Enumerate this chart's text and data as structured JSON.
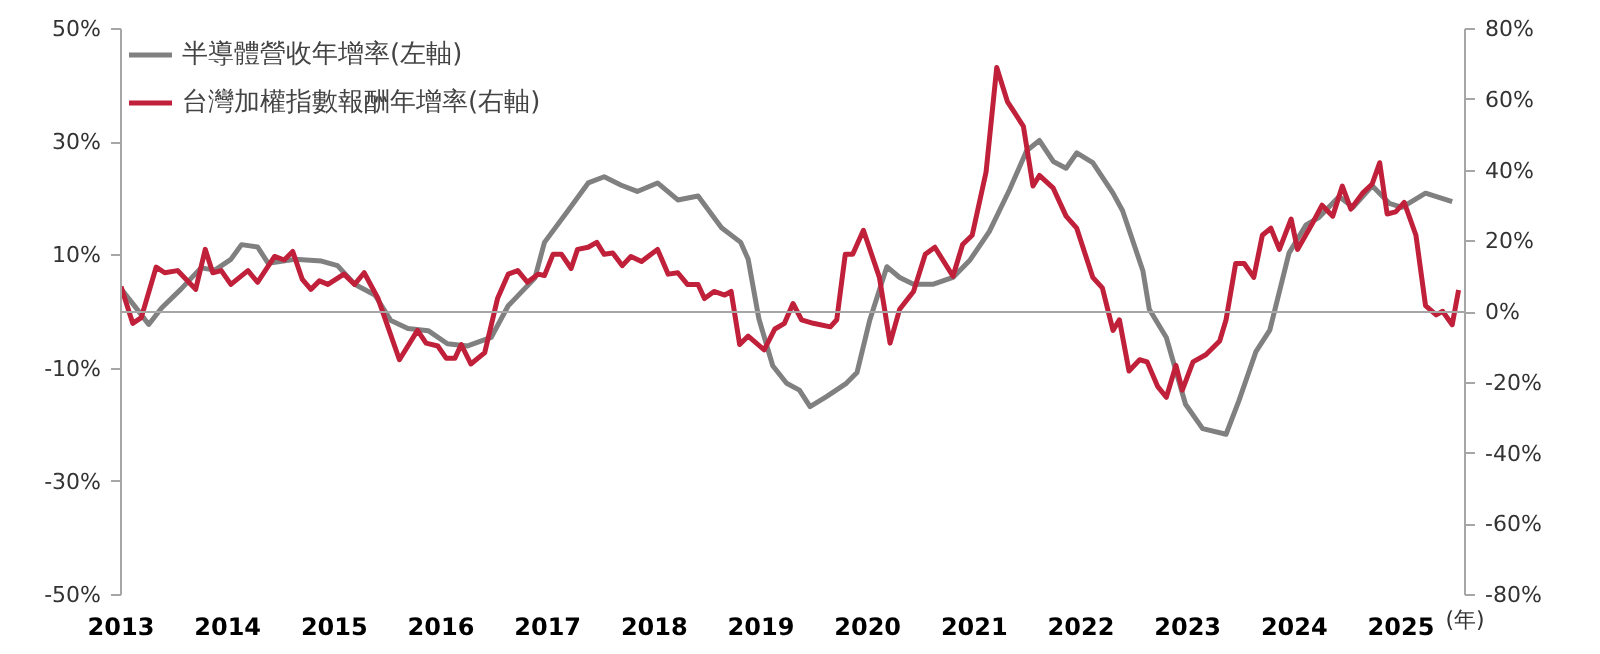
{
  "chart_data": {
    "type": "line",
    "xlabel": "(年)",
    "legend": "top left",
    "grid": false,
    "marker": "none",
    "line_style": "solid",
    "xlim": [
      2013,
      2025.6
    ],
    "xticks": [
      {
        "value": 2013,
        "label": "2013"
      },
      {
        "value": 2014,
        "label": "2014"
      },
      {
        "value": 2015,
        "label": "2015"
      },
      {
        "value": 2016,
        "label": "2016"
      },
      {
        "value": 2017,
        "label": "2017"
      },
      {
        "value": 2018,
        "label": "2018"
      },
      {
        "value": 2019,
        "label": "2019"
      },
      {
        "value": 2020,
        "label": "2020"
      },
      {
        "value": 2021,
        "label": "2021"
      },
      {
        "value": 2022,
        "label": "2022"
      },
      {
        "value": 2023,
        "label": "2023"
      },
      {
        "value": 2024,
        "label": "2024"
      },
      {
        "value": 2025,
        "label": "2025"
      }
    ],
    "ylim": [
      -50,
      50
    ],
    "yticks": [
      {
        "value": -50,
        "label": "-50%"
      },
      {
        "value": -30,
        "label": "-30%"
      },
      {
        "value": -10,
        "label": "-10%"
      },
      {
        "value": 10,
        "label": "10%"
      },
      {
        "value": 30,
        "label": "30%"
      },
      {
        "value": 50,
        "label": "50%"
      }
    ],
    "y2lim": [
      -80,
      80
    ],
    "y2ticks": [
      {
        "value": -80,
        "label": "-80%"
      },
      {
        "value": -60,
        "label": "-60%"
      },
      {
        "value": -40,
        "label": "-40%"
      },
      {
        "value": -20,
        "label": "-20%"
      },
      {
        "value": 0,
        "label": "0%"
      },
      {
        "value": 20,
        "label": "20%"
      },
      {
        "value": 40,
        "label": "40%"
      },
      {
        "value": 60,
        "label": "60%"
      },
      {
        "value": 80,
        "label": "80%"
      }
    ],
    "ref_lines": [
      {
        "axis": "y",
        "value": 0,
        "color": "#a6a6a6"
      }
    ],
    "series": [
      {
        "name": "半導體營收年增率(左軸)",
        "color": "#808080",
        "x": [
          2013.0,
          2013.13,
          2013.26,
          2013.38,
          2013.56,
          2013.75,
          2013.88,
          2014.03,
          2014.13,
          2014.28,
          2014.38,
          2014.63,
          2014.88,
          2015.03,
          2015.19,
          2015.38,
          2015.53,
          2015.69,
          2015.88,
          2016.06,
          2016.25,
          2016.47,
          2016.63,
          2016.88,
          2016.97,
          2017.19,
          2017.38,
          2017.53,
          2017.69,
          2017.84,
          2018.03,
          2018.22,
          2018.41,
          2018.63,
          2018.81,
          2018.88,
          2018.98,
          2019.11,
          2019.24,
          2019.36,
          2019.46,
          2019.61,
          2019.8,
          2019.9,
          2020.02,
          2020.18,
          2020.3,
          2020.43,
          2020.61,
          2020.8,
          2020.96,
          2021.14,
          2021.33,
          2021.49,
          2021.61,
          2021.74,
          2021.86,
          2021.96,
          2022.11,
          2022.3,
          2022.39,
          2022.58,
          2022.64,
          2022.8,
          2022.98,
          2023.14,
          2023.36,
          2023.48,
          2023.64,
          2023.77,
          2023.95,
          2024.11,
          2024.23,
          2024.42,
          2024.55,
          2024.73,
          2024.89,
          2025.01,
          2025.23,
          2025.48
        ],
        "values": [
          4.1,
          1,
          -2.2,
          0.7,
          4,
          7.8,
          7.4,
          9.3,
          11.9,
          11.5,
          8.6,
          9.3,
          9,
          8.2,
          4.9,
          3,
          -1.5,
          -2.9,
          -3.3,
          -5.6,
          -6,
          -4.5,
          1.1,
          6,
          12.3,
          17.9,
          22.8,
          23.9,
          22.4,
          21.3,
          22.8,
          19.8,
          20.5,
          14.9,
          12.3,
          9.3,
          -1.2,
          -9.5,
          -12.6,
          -13.8,
          -16.7,
          -15,
          -12.6,
          -10.7,
          -1.4,
          8,
          6.1,
          4.9,
          4.9,
          6.1,
          9.2,
          14.2,
          21.6,
          28.5,
          30.3,
          26.6,
          25.4,
          28.1,
          26.4,
          21,
          17.9,
          7.3,
          0.5,
          -4.5,
          -16.3,
          -20.6,
          -21.6,
          -15.7,
          -7,
          -3.2,
          10.4,
          15.4,
          16.7,
          20.4,
          18.5,
          22.3,
          19.2,
          18.5,
          21,
          19.5
        ]
      },
      {
        "name": "台灣加權指數報酬年增率(右軸)",
        "color": "#c0203a",
        "axis": "y2",
        "x": [
          2013.0,
          2013.11,
          2013.19,
          2013.33,
          2013.41,
          2013.53,
          2013.7,
          2013.79,
          2013.86,
          2013.94,
          2014.03,
          2014.19,
          2014.28,
          2014.44,
          2014.53,
          2014.61,
          2014.7,
          2014.78,
          2014.86,
          2014.94,
          2015.09,
          2015.19,
          2015.28,
          2015.41,
          2015.61,
          2015.78,
          2015.86,
          2015.97,
          2016.05,
          2016.13,
          2016.19,
          2016.28,
          2016.41,
          2016.53,
          2016.63,
          2016.72,
          2016.81,
          2016.91,
          2016.97,
          2017.05,
          2017.13,
          2017.22,
          2017.28,
          2017.38,
          2017.46,
          2017.53,
          2017.61,
          2017.7,
          2017.78,
          2017.88,
          2018.03,
          2018.13,
          2018.22,
          2018.31,
          2018.41,
          2018.47,
          2018.56,
          2018.66,
          2018.72,
          2018.8,
          2018.88,
          2019.03,
          2019.13,
          2019.22,
          2019.3,
          2019.38,
          2019.49,
          2019.65,
          2019.71,
          2019.79,
          2019.86,
          2019.96,
          2020.11,
          2020.21,
          2020.3,
          2020.43,
          2020.54,
          2020.63,
          2020.8,
          2020.89,
          2020.98,
          2021.11,
          2021.21,
          2021.31,
          2021.46,
          2021.55,
          2021.61,
          2021.74,
          2021.86,
          2021.96,
          2022.11,
          2022.2,
          2022.3,
          2022.36,
          2022.45,
          2022.55,
          2022.62,
          2022.72,
          2022.8,
          2022.89,
          2022.95,
          2023.05,
          2023.17,
          2023.3,
          2023.36,
          2023.45,
          2023.53,
          2023.62,
          2023.7,
          2023.78,
          2023.86,
          2023.97,
          2024.03,
          2024.17,
          2024.26,
          2024.36,
          2024.45,
          2024.53,
          2024.64,
          2024.73,
          2024.8,
          2024.87,
          2024.95,
          2025.03,
          2025.14,
          2025.23,
          2025.33,
          2025.39,
          2025.48,
          2025.54
        ],
        "values": [
          7.2,
          -3.2,
          -1.6,
          12.7,
          11.1,
          11.7,
          6.4,
          17.7,
          11.1,
          11.7,
          7.8,
          11.7,
          8.4,
          15.7,
          14.7,
          17.1,
          9.2,
          6.4,
          8.8,
          7.8,
          10.7,
          7.8,
          11.1,
          3.8,
          -13.5,
          -5.2,
          -8.8,
          -9.6,
          -13.1,
          -13.1,
          -9.2,
          -14.7,
          -11.5,
          3.8,
          10.7,
          11.7,
          8.4,
          10.7,
          10.3,
          16.3,
          16.3,
          12.3,
          17.7,
          18.3,
          19.7,
          16.3,
          16.7,
          13.1,
          15.7,
          14.3,
          17.7,
          10.7,
          11.1,
          7.8,
          7.8,
          3.8,
          5.8,
          4.8,
          5.8,
          -9.2,
          -6.8,
          -10.7,
          -4.8,
          -3.2,
          2.4,
          -2.2,
          -3.2,
          -4.2,
          -2.2,
          16.3,
          16.3,
          23.1,
          9.8,
          -8.8,
          0.8,
          5.8,
          16.3,
          18.3,
          10.1,
          19.1,
          21.7,
          39.6,
          69.1,
          59.5,
          52.5,
          35.6,
          38.6,
          35,
          27.1,
          23.7,
          9.8,
          6.8,
          -5.2,
          -2.2,
          -16.7,
          -13.5,
          -14.1,
          -21.1,
          -24.1,
          -15.1,
          -22.1,
          -14.1,
          -12.1,
          -8.2,
          -2.2,
          13.7,
          13.7,
          9.8,
          21.7,
          23.7,
          17.7,
          26.3,
          17.7,
          25.1,
          30.2,
          27.1,
          35.6,
          29.1,
          33.6,
          36.2,
          42.2,
          27.7,
          28.3,
          31,
          21.7,
          1.8,
          -0.8,
          0.2,
          -3.6,
          6.2
        ]
      }
    ]
  }
}
